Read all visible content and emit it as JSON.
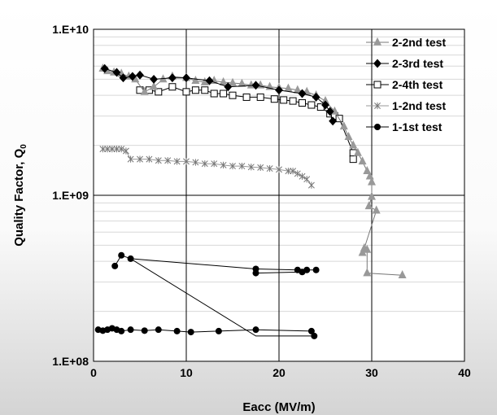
{
  "chart_data": {
    "type": "scatter",
    "xlabel": "Eacc (MV/m)",
    "ylabel": "Quality Factor, Q",
    "ylabel_sub": "0",
    "xlim": [
      0,
      40
    ],
    "ylim": [
      100000000,
      10000000000
    ],
    "yscale": "log",
    "xticks": [
      0,
      10,
      20,
      30,
      40
    ],
    "yticks": [
      {
        "value": 100000000,
        "label": "1.E+08"
      },
      {
        "value": 1000000000,
        "label": "1.E+09"
      },
      {
        "value": 10000000000,
        "label": "1.E+10"
      }
    ],
    "grid": true,
    "legend_position": "top-right",
    "series": [
      {
        "name": "2-2nd test",
        "marker": "triangle",
        "color": "#999999",
        "line_color": "#777777",
        "points": [
          [
            1.0,
            5800000000.0
          ],
          [
            1.5,
            5600000000.0
          ],
          [
            2.2,
            5500000000.0
          ],
          [
            3.0,
            5400000000.0
          ],
          [
            3.8,
            5200000000.0
          ],
          [
            4.5,
            5000000000.0
          ],
          [
            5.5,
            4200000000.0
          ],
          [
            6.5,
            4500000000.0
          ],
          [
            7.5,
            5000000000.0
          ],
          [
            8.5,
            5200000000.0
          ],
          [
            10.0,
            5100000000.0
          ],
          [
            11.0,
            4900000000.0
          ],
          [
            12.0,
            4800000000.0
          ],
          [
            13.0,
            4900000000.0
          ],
          [
            14.0,
            4800000000.0
          ],
          [
            15.0,
            4750000000.0
          ],
          [
            16.0,
            4700000000.0
          ],
          [
            17.0,
            4600000000.0
          ],
          [
            18.0,
            4600000000.0
          ],
          [
            19.0,
            4500000000.0
          ],
          [
            20.0,
            4450000000.0
          ],
          [
            21.0,
            4400000000.0
          ],
          [
            22.0,
            4300000000.0
          ],
          [
            23.0,
            4200000000.0
          ],
          [
            24.0,
            4000000000.0
          ],
          [
            25.0,
            3700000000.0
          ],
          [
            26.0,
            3200000000.0
          ],
          [
            27.0,
            2600000000.0
          ],
          [
            27.5,
            2250000000.0
          ],
          [
            28.0,
            2000000000.0
          ],
          [
            28.5,
            1800000000.0
          ],
          [
            29.0,
            1600000000.0
          ],
          [
            29.5,
            1400000000.0
          ],
          [
            29.8,
            1300000000.0
          ],
          [
            30.0,
            1200000000.0
          ],
          [
            30.0,
            980000000.0
          ],
          [
            29.7,
            860000000.0
          ],
          [
            30.5,
            810000000.0
          ],
          [
            29.2,
            480000000.0
          ],
          [
            29.0,
            450000000.0
          ],
          [
            29.5,
            470000000.0
          ],
          [
            29.5,
            340000000.0
          ],
          [
            33.3,
            330000000.0
          ]
        ]
      },
      {
        "name": "2-3rd test",
        "marker": "diamond",
        "color": "#000000",
        "line_color": "#000000",
        "points": [
          [
            1.2,
            5800000000.0
          ],
          [
            2.5,
            5500000000.0
          ],
          [
            3.2,
            5100000000.0
          ],
          [
            4.2,
            5200000000.0
          ],
          [
            5.0,
            5300000000.0
          ],
          [
            6.5,
            5000000000.0
          ],
          [
            8.5,
            5100000000.0
          ],
          [
            10.0,
            5100000000.0
          ],
          [
            12.5,
            4900000000.0
          ],
          [
            14.5,
            4500000000.0
          ],
          [
            17.5,
            4600000000.0
          ],
          [
            20.0,
            4300000000.0
          ],
          [
            22.5,
            4100000000.0
          ],
          [
            24.0,
            3900000000.0
          ],
          [
            25.0,
            3500000000.0
          ],
          [
            25.5,
            3200000000.0
          ],
          [
            25.8,
            2800000000.0
          ]
        ]
      },
      {
        "name": "2-4th test",
        "marker": "square",
        "color": "#ffffff",
        "line_color": "#000000",
        "points": [
          [
            5.0,
            4300000000.0
          ],
          [
            6.0,
            4300000000.0
          ],
          [
            7.0,
            4200000000.0
          ],
          [
            8.5,
            4500000000.0
          ],
          [
            10.0,
            4200000000.0
          ],
          [
            11.0,
            4300000000.0
          ],
          [
            12.0,
            4300000000.0
          ],
          [
            13.0,
            4100000000.0
          ],
          [
            14.0,
            4100000000.0
          ],
          [
            15.0,
            4000000000.0
          ],
          [
            16.5,
            3900000000.0
          ],
          [
            18.0,
            3900000000.0
          ],
          [
            19.5,
            3800000000.0
          ],
          [
            20.5,
            3750000000.0
          ],
          [
            21.5,
            3700000000.0
          ],
          [
            22.5,
            3600000000.0
          ],
          [
            23.5,
            3500000000.0
          ],
          [
            24.5,
            3400000000.0
          ],
          [
            25.5,
            3100000000.0
          ],
          [
            26.0,
            3000000000.0
          ],
          [
            26.5,
            2900000000.0
          ],
          [
            28.0,
            1800000000.0
          ],
          [
            28.0,
            1650000000.0
          ]
        ]
      },
      {
        "name": "1-2nd test",
        "marker": "star",
        "color": "#777777",
        "line_color": "#999999",
        "points": [
          [
            1.0,
            1900000000.0
          ],
          [
            1.5,
            1900000000.0
          ],
          [
            2.0,
            1900000000.0
          ],
          [
            2.5,
            1900000000.0
          ],
          [
            3.0,
            1900000000.0
          ],
          [
            3.5,
            1850000000.0
          ],
          [
            4.0,
            1650000000.0
          ],
          [
            5.0,
            1650000000.0
          ],
          [
            6.0,
            1650000000.0
          ],
          [
            7.0,
            1620000000.0
          ],
          [
            8.0,
            1620000000.0
          ],
          [
            9.0,
            1600000000.0
          ],
          [
            10.0,
            1600000000.0
          ],
          [
            11.0,
            1580000000.0
          ],
          [
            12.0,
            1550000000.0
          ],
          [
            13.0,
            1550000000.0
          ],
          [
            14.0,
            1520000000.0
          ],
          [
            15.0,
            1500000000.0
          ],
          [
            16.0,
            1500000000.0
          ],
          [
            17.0,
            1480000000.0
          ],
          [
            18.0,
            1470000000.0
          ],
          [
            19.0,
            1450000000.0
          ],
          [
            20.0,
            1430000000.0
          ],
          [
            21.0,
            1400000000.0
          ],
          [
            21.5,
            1400000000.0
          ],
          [
            22.0,
            1350000000.0
          ],
          [
            22.5,
            1300000000.0
          ],
          [
            23.0,
            1250000000.0
          ],
          [
            23.5,
            1150000000.0
          ]
        ]
      },
      {
        "name": "1-1st test",
        "marker": "circle",
        "color": "#000000",
        "line_color": "#000000",
        "points": [
          [
            0.5,
            155000000.0
          ],
          [
            1.0,
            153000000.0
          ],
          [
            1.5,
            155000000.0
          ],
          [
            2.0,
            158000000.0
          ],
          [
            2.5,
            155000000.0
          ],
          [
            3.0,
            152000000.0
          ],
          [
            4.0,
            155000000.0
          ],
          [
            5.5,
            153000000.0
          ],
          [
            7.0,
            155000000.0
          ],
          [
            9.0,
            152000000.0
          ],
          [
            10.5,
            150000000.0
          ],
          [
            13.5,
            152000000.0
          ],
          [
            17.5,
            155000000.0
          ],
          [
            23.5,
            152000000.0
          ],
          [
            23.8,
            142000000.0
          ],
          [
            2.3,
            375000000.0
          ],
          [
            3.0,
            435000000.0
          ],
          [
            4.0,
            415000000.0
          ],
          [
            17.5,
            360000000.0
          ],
          [
            17.5,
            340000000.0
          ],
          [
            22.0,
            355000000.0
          ],
          [
            22.5,
            345000000.0
          ],
          [
            23.0,
            355000000.0
          ],
          [
            24.0,
            355000000.0
          ]
        ],
        "segments": [
          [
            [
              0.5,
              155000000.0
            ],
            [
              1.0,
              153000000.0
            ],
            [
              1.5,
              155000000.0
            ],
            [
              2.0,
              158000000.0
            ],
            [
              2.5,
              155000000.0
            ],
            [
              3.0,
              152000000.0
            ],
            [
              4.0,
              155000000.0
            ],
            [
              5.5,
              153000000.0
            ],
            [
              7.0,
              155000000.0
            ],
            [
              9.0,
              152000000.0
            ],
            [
              10.5,
              150000000.0
            ],
            [
              13.5,
              152000000.0
            ],
            [
              17.5,
              155000000.0
            ],
            [
              23.5,
              152000000.0
            ]
          ],
          [
            [
              23.8,
              142000000.0
            ],
            [
              17.5,
              142000000.0
            ],
            [
              4.0,
              415000000.0
            ],
            [
              3.0,
              435000000.0
            ],
            [
              2.3,
              375000000.0
            ]
          ],
          [
            [
              4.0,
              415000000.0
            ],
            [
              17.5,
              360000000.0
            ],
            [
              22.0,
              355000000.0
            ],
            [
              24.0,
              355000000.0
            ]
          ],
          [
            [
              17.5,
              340000000.0
            ],
            [
              22.5,
              345000000.0
            ],
            [
              23.0,
              355000000.0
            ]
          ]
        ]
      }
    ]
  }
}
